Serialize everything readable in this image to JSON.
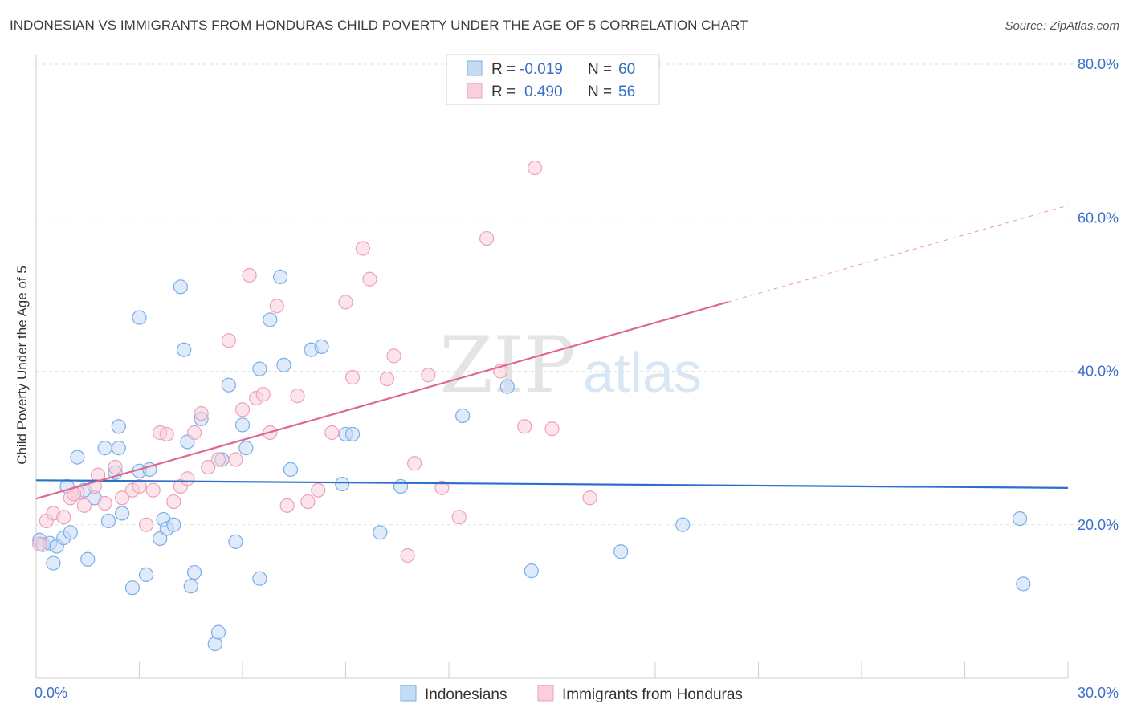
{
  "title": "INDONESIAN VS IMMIGRANTS FROM HONDURAS CHILD POVERTY UNDER THE AGE OF 5 CORRELATION CHART",
  "source": "Source: ZipAtlas.com",
  "chart_data": {
    "type": "scatter",
    "ylabel": "Child Poverty Under the Age of 5",
    "xlim": [
      0,
      30
    ],
    "ylim": [
      0,
      80
    ],
    "x_ticks": [
      {
        "value": 0,
        "label": "0.0%"
      },
      {
        "value": 30,
        "label": "30.0%"
      }
    ],
    "y_ticks": [
      {
        "value": 20,
        "label": "20.0%"
      },
      {
        "value": 40,
        "label": "40.0%"
      },
      {
        "value": 60,
        "label": "60.0%"
      },
      {
        "value": 80,
        "label": "80.0%"
      }
    ],
    "grid": true,
    "legend_position": "top-center",
    "watermark": "ZIPatlas",
    "series": [
      {
        "name": "Indonesians",
        "color": "#7aaee8",
        "fill": "#c4dbf5",
        "line_color": "#2e6fcc",
        "R": "-0.019",
        "N": "60",
        "trend": {
          "x0": 0,
          "y0": 25.8,
          "x1": 30,
          "y1": 24.8,
          "dash_from": null
        },
        "points": [
          [
            0.1,
            18.0
          ],
          [
            0.2,
            17.4
          ],
          [
            0.4,
            17.6
          ],
          [
            0.5,
            15.0
          ],
          [
            0.6,
            17.2
          ],
          [
            0.8,
            18.3
          ],
          [
            1.0,
            19.0
          ],
          [
            1.2,
            28.8
          ],
          [
            0.9,
            25.0
          ],
          [
            1.4,
            24.5
          ],
          [
            1.5,
            15.5
          ],
          [
            1.7,
            23.5
          ],
          [
            2.0,
            30.0
          ],
          [
            2.1,
            20.5
          ],
          [
            2.3,
            26.8
          ],
          [
            2.5,
            21.5
          ],
          [
            2.8,
            11.8
          ],
          [
            2.4,
            30.0
          ],
          [
            3.0,
            27.0
          ],
          [
            3.3,
            27.2
          ],
          [
            3.2,
            13.5
          ],
          [
            3.6,
            18.2
          ],
          [
            3.7,
            20.7
          ],
          [
            3.8,
            19.5
          ],
          [
            4.0,
            20.0
          ],
          [
            4.2,
            51.0
          ],
          [
            4.3,
            42.8
          ],
          [
            4.4,
            30.8
          ],
          [
            4.5,
            12.0
          ],
          [
            4.6,
            13.8
          ],
          [
            4.8,
            33.8
          ],
          [
            5.2,
            4.5
          ],
          [
            5.4,
            28.5
          ],
          [
            5.6,
            38.2
          ],
          [
            5.8,
            17.8
          ],
          [
            6.0,
            33.0
          ],
          [
            6.1,
            30.0
          ],
          [
            6.5,
            40.3
          ],
          [
            6.5,
            13.0
          ],
          [
            6.8,
            46.7
          ],
          [
            7.1,
            52.3
          ],
          [
            7.2,
            40.8
          ],
          [
            7.4,
            27.2
          ],
          [
            8.0,
            42.8
          ],
          [
            8.3,
            43.2
          ],
          [
            8.9,
            25.3
          ],
          [
            9.0,
            31.8
          ],
          [
            9.2,
            31.8
          ],
          [
            10.0,
            19.0
          ],
          [
            10.6,
            25.0
          ],
          [
            12.4,
            34.2
          ],
          [
            13.7,
            38.0
          ],
          [
            14.4,
            14.0
          ],
          [
            17.0,
            16.5
          ],
          [
            18.8,
            20.0
          ],
          [
            28.6,
            20.8
          ],
          [
            28.7,
            12.3
          ],
          [
            5.3,
            6.0
          ],
          [
            3.0,
            47.0
          ],
          [
            2.4,
            32.8
          ]
        ]
      },
      {
        "name": "Immigrants from Honduras",
        "color": "#f0a0b8",
        "fill": "#f8cfdb",
        "line_color": "#e06890",
        "R": "0.490",
        "N": "56",
        "trend": {
          "x0": 0,
          "y0": 23.4,
          "x1": 30,
          "y1": 61.6,
          "dash_from": 20.1
        },
        "points": [
          [
            0.1,
            17.5
          ],
          [
            0.3,
            20.5
          ],
          [
            0.5,
            21.5
          ],
          [
            0.8,
            21.0
          ],
          [
            1.0,
            23.5
          ],
          [
            1.2,
            24.2
          ],
          [
            1.4,
            22.5
          ],
          [
            1.7,
            25.0
          ],
          [
            1.8,
            26.5
          ],
          [
            2.0,
            22.8
          ],
          [
            2.3,
            27.5
          ],
          [
            2.5,
            23.5
          ],
          [
            2.8,
            24.5
          ],
          [
            3.0,
            25.0
          ],
          [
            3.2,
            20.0
          ],
          [
            3.4,
            24.5
          ],
          [
            3.6,
            32.0
          ],
          [
            3.8,
            31.8
          ],
          [
            4.0,
            23.0
          ],
          [
            4.2,
            25.0
          ],
          [
            4.4,
            26.0
          ],
          [
            4.6,
            32.0
          ],
          [
            4.8,
            34.5
          ],
          [
            5.0,
            27.5
          ],
          [
            5.3,
            28.5
          ],
          [
            5.6,
            44.0
          ],
          [
            5.8,
            28.5
          ],
          [
            6.0,
            35.0
          ],
          [
            6.2,
            52.5
          ],
          [
            6.4,
            36.5
          ],
          [
            6.6,
            37.0
          ],
          [
            6.8,
            32.0
          ],
          [
            7.0,
            48.5
          ],
          [
            7.3,
            22.5
          ],
          [
            7.6,
            36.8
          ],
          [
            7.9,
            23.0
          ],
          [
            8.2,
            24.5
          ],
          [
            8.6,
            32.0
          ],
          [
            9.0,
            49.0
          ],
          [
            9.2,
            39.2
          ],
          [
            9.5,
            56.0
          ],
          [
            9.7,
            52.0
          ],
          [
            10.2,
            39.0
          ],
          [
            10.4,
            42.0
          ],
          [
            10.8,
            16.0
          ],
          [
            11.0,
            28.0
          ],
          [
            11.4,
            39.5
          ],
          [
            11.8,
            24.8
          ],
          [
            12.3,
            21.0
          ],
          [
            13.1,
            57.3
          ],
          [
            13.5,
            40.0
          ],
          [
            14.2,
            32.8
          ],
          [
            14.5,
            66.5
          ],
          [
            15.0,
            32.5
          ],
          [
            16.1,
            23.5
          ],
          [
            1.1,
            24.0
          ]
        ]
      }
    ]
  }
}
